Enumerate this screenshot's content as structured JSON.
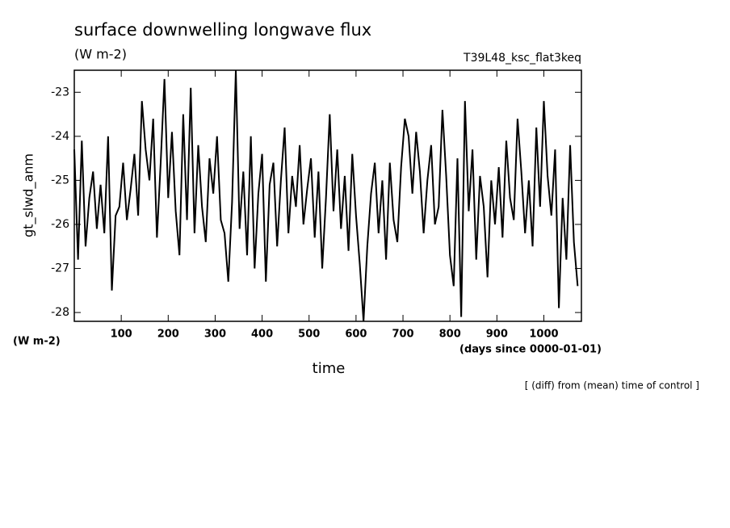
{
  "chart_data": {
    "type": "line",
    "title": "surface downwelling longwave flux",
    "units": "(W m-2)",
    "run_label": "T39L48_ksc_flat3keq",
    "y_label": "gt_slwd_anm",
    "y_units": "(W m-2)",
    "x_label": "time",
    "x_units": "(days since 0000-01-01)",
    "note": "[ (diff) from (mean) time of control ]",
    "xlim": [
      0,
      1080
    ],
    "ylim": [
      -28.2,
      -22.5
    ],
    "xticks": [
      100,
      200,
      300,
      400,
      500,
      600,
      700,
      800,
      900,
      1000
    ],
    "yticks": [
      -28,
      -27,
      -26,
      -25,
      -24,
      -23
    ],
    "x": [
      0,
      8,
      16,
      24,
      32,
      40,
      48,
      56,
      64,
      72,
      80,
      88,
      96,
      104,
      112,
      120,
      128,
      136,
      144,
      152,
      160,
      168,
      176,
      184,
      192,
      200,
      208,
      216,
      224,
      232,
      240,
      248,
      256,
      264,
      272,
      280,
      288,
      296,
      304,
      312,
      320,
      328,
      336,
      344,
      352,
      360,
      368,
      376,
      384,
      392,
      400,
      408,
      416,
      424,
      432,
      440,
      448,
      456,
      464,
      472,
      480,
      488,
      496,
      504,
      512,
      520,
      528,
      536,
      544,
      552,
      560,
      568,
      576,
      584,
      592,
      600,
      608,
      616,
      624,
      632,
      640,
      648,
      656,
      664,
      672,
      680,
      688,
      696,
      704,
      712,
      720,
      728,
      736,
      744,
      752,
      760,
      768,
      776,
      784,
      792,
      800,
      808,
      816,
      824,
      832,
      840,
      848,
      856,
      864,
      872,
      880,
      888,
      896,
      904,
      912,
      920,
      928,
      936,
      944,
      952,
      960,
      968,
      976,
      984,
      992,
      1000,
      1008,
      1016,
      1024,
      1032,
      1040,
      1048,
      1056,
      1064,
      1072
    ],
    "series": [
      {
        "color": "#000000",
        "values": [
          -24.3,
          -26.8,
          -24.1,
          -26.5,
          -25.4,
          -24.8,
          -26.1,
          -25.1,
          -26.2,
          -24.0,
          -27.5,
          -25.8,
          -25.6,
          -24.6,
          -25.9,
          -25.2,
          -24.4,
          -25.8,
          -23.2,
          -24.3,
          -25.0,
          -23.6,
          -26.3,
          -24.6,
          -22.7,
          -25.4,
          -23.9,
          -25.7,
          -26.7,
          -23.5,
          -25.9,
          -22.9,
          -26.2,
          -24.2,
          -25.6,
          -26.4,
          -24.5,
          -25.3,
          -24.0,
          -25.9,
          -26.2,
          -27.3,
          -25.5,
          -22.5,
          -26.1,
          -24.8,
          -26.7,
          -24.0,
          -27.0,
          -25.3,
          -24.4,
          -27.3,
          -25.1,
          -24.6,
          -26.5,
          -25.0,
          -23.8,
          -26.2,
          -24.9,
          -25.6,
          -24.2,
          -26.0,
          -25.2,
          -24.5,
          -26.3,
          -24.8,
          -27.0,
          -25.4,
          -23.5,
          -25.7,
          -24.3,
          -26.1,
          -24.9,
          -26.6,
          -24.4,
          -25.8,
          -26.9,
          -28.2,
          -26.5,
          -25.3,
          -24.6,
          -26.2,
          -25.0,
          -26.8,
          -24.6,
          -25.9,
          -26.4,
          -24.7,
          -23.6,
          -24.0,
          -25.3,
          -23.9,
          -24.8,
          -26.2,
          -25.0,
          -24.2,
          -26.0,
          -25.6,
          -23.4,
          -24.9,
          -26.7,
          -27.4,
          -24.5,
          -28.1,
          -23.2,
          -25.7,
          -24.3,
          -26.8,
          -24.9,
          -25.6,
          -27.2,
          -25.0,
          -26.0,
          -24.7,
          -26.3,
          -24.1,
          -25.4,
          -25.9,
          -23.6,
          -24.8,
          -26.2,
          -25.0,
          -26.5,
          -23.8,
          -25.6,
          -23.2,
          -24.9,
          -25.8,
          -24.3,
          -27.9,
          -25.4,
          -26.8,
          -24.2,
          -26.4,
          -27.4
        ]
      }
    ]
  }
}
